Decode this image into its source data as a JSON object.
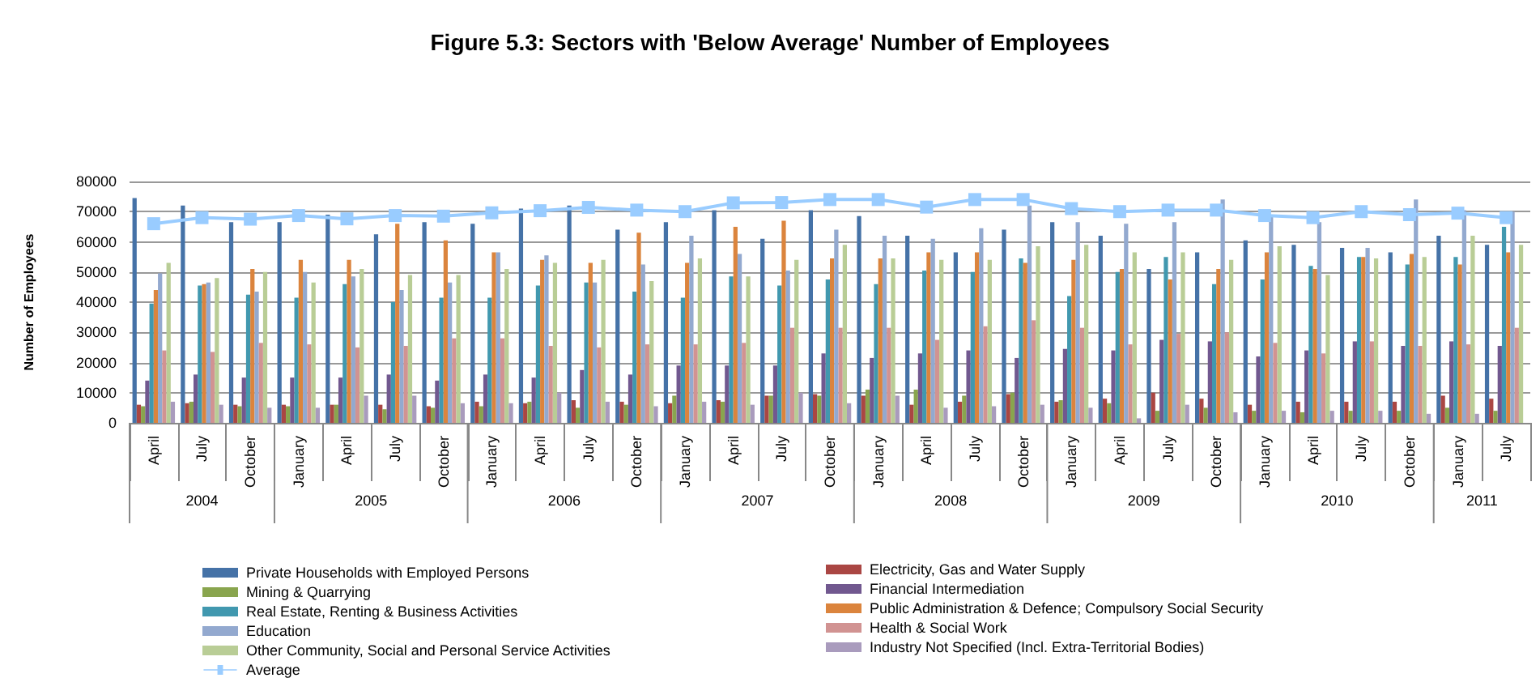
{
  "chart_data": {
    "type": "bar",
    "title": "Figure 5.3: Sectors with 'Below Average' Number of Employees",
    "ylabel": "Number of Employees",
    "categories": [
      "April",
      "July",
      "October",
      "January",
      "April",
      "July",
      "October",
      "January",
      "April",
      "July",
      "October",
      "January",
      "April",
      "July",
      "October",
      "January",
      "April",
      "July",
      "October",
      "January",
      "April",
      "July",
      "October",
      "January",
      "April",
      "July",
      "October",
      "January",
      "July"
    ],
    "annotations": [
      "2004",
      "2005",
      "2006",
      "2007",
      "2008",
      "2009",
      "2010",
      "2011"
    ],
    "ylim": [
      0,
      80000
    ],
    "yticks": [
      0,
      10000,
      20000,
      30000,
      40000,
      50000,
      60000,
      70000,
      80000
    ],
    "grid": "y",
    "legend": "bottom",
    "marker": "square",
    "series": [
      {
        "name": "Private Households with Employed Persons",
        "color": "#4572a7",
        "values": [
          74500,
          72000,
          66500,
          66500,
          69000,
          62500,
          66500,
          66000,
          71000,
          72000,
          64000,
          66500,
          70500,
          61000,
          70500,
          68500,
          62000,
          56500,
          64000,
          66500,
          62000,
          51000,
          56500,
          60500,
          59000,
          58000,
          56500,
          62000,
          59000
        ]
      },
      {
        "name": "Electricity, Gas and Water Supply",
        "color": "#aa4643",
        "values": [
          6000,
          6500,
          6000,
          6000,
          6000,
          6000,
          5500,
          7000,
          6500,
          7500,
          7000,
          6500,
          7500,
          9000,
          9500,
          9000,
          6000,
          7000,
          9500,
          7000,
          8000,
          10000,
          8000,
          6000,
          7000,
          7000,
          7000,
          9000,
          8000
        ]
      },
      {
        "name": "Mining & Quarrying",
        "color": "#89a54e",
        "values": [
          5500,
          7000,
          5500,
          5500,
          6000,
          4500,
          5000,
          5500,
          7000,
          5000,
          6000,
          9000,
          7000,
          9000,
          9000,
          11000,
          11000,
          9000,
          10000,
          7500,
          6500,
          4000,
          5000,
          4000,
          3500,
          4000,
          4000,
          5000,
          4000
        ]
      },
      {
        "name": "Financial Intermediation",
        "color": "#71588f",
        "values": [
          14000,
          16000,
          15000,
          15000,
          15000,
          16000,
          14000,
          16000,
          15000,
          17500,
          16000,
          19000,
          19000,
          19000,
          23000,
          21500,
          23000,
          24000,
          21500,
          24500,
          24000,
          27500,
          27000,
          22000,
          24000,
          27000,
          25500,
          27000,
          25500
        ]
      },
      {
        "name": "Real Estate, Renting & Business Activities",
        "color": "#4198af",
        "values": [
          39500,
          45500,
          42500,
          41500,
          46000,
          40000,
          41500,
          41500,
          45500,
          46500,
          43500,
          41500,
          48500,
          45500,
          47500,
          46000,
          50500,
          50000,
          54500,
          42000,
          50000,
          55000,
          46000,
          47500,
          52000,
          55000,
          52500,
          55000,
          65000
        ]
      },
      {
        "name": "Public Administration & Defence; Compulsory Social Security",
        "color": "#db843d",
        "values": [
          44000,
          46000,
          51000,
          54000,
          54000,
          66000,
          60500,
          56500,
          54000,
          53000,
          63000,
          53000,
          65000,
          67000,
          54500,
          54500,
          56500,
          56500,
          53000,
          54000,
          51000,
          47500,
          51000,
          56500,
          51000,
          55000,
          56000,
          52500,
          56500
        ]
      },
      {
        "name": "Education",
        "color": "#93a9cf",
        "values": [
          49500,
          46500,
          43500,
          50000,
          48500,
          44000,
          46500,
          56500,
          55500,
          46500,
          52500,
          62000,
          56000,
          50500,
          64000,
          62000,
          61000,
          64500,
          72000,
          66500,
          66000,
          66500,
          74000,
          68500,
          66500,
          58000,
          74000,
          70500,
          70000
        ]
      },
      {
        "name": "Health & Social Work",
        "color": "#d19392",
        "values": [
          24000,
          23500,
          26500,
          26000,
          25000,
          25500,
          28000,
          28000,
          25500,
          25000,
          26000,
          26000,
          26500,
          31500,
          31500,
          31500,
          27500,
          32000,
          34000,
          31500,
          26000,
          29500,
          30000,
          26500,
          23000,
          27000,
          25500,
          26000,
          31500
        ]
      },
      {
        "name": "Other Community, Social and Personal Service Activities",
        "color": "#b9cd96",
        "values": [
          53000,
          48000,
          50000,
          46500,
          51000,
          49000,
          49000,
          51000,
          53000,
          54000,
          47000,
          54500,
          48500,
          54000,
          59000,
          54500,
          54000,
          54000,
          58500,
          59000,
          56500,
          56500,
          54000,
          58500,
          49000,
          54500,
          55000,
          62000,
          59000
        ]
      },
      {
        "name": "Industry Not Specified (Incl. Extra-Territorial Bodies)",
        "color": "#a99bbd",
        "values": [
          7000,
          6000,
          5000,
          5000,
          9000,
          9000,
          6500,
          6500,
          10000,
          7000,
          5500,
          7000,
          6000,
          10000,
          6500,
          9000,
          5000,
          5500,
          6000,
          5000,
          1500,
          6000,
          3500,
          4000,
          4000,
          4000,
          3000,
          3000,
          null
        ]
      },
      {
        "name": "Average",
        "type": "line",
        "color": "#99ccff",
        "values": [
          66000,
          68000,
          67500,
          68700,
          67600,
          68700,
          68500,
          69600,
          70300,
          71400,
          70500,
          70000,
          72900,
          73000,
          74000,
          74000,
          71500,
          74000,
          74000,
          71000,
          70000,
          70500,
          70500,
          68700,
          68000,
          70000,
          69000,
          69500,
          68000
        ]
      }
    ]
  }
}
